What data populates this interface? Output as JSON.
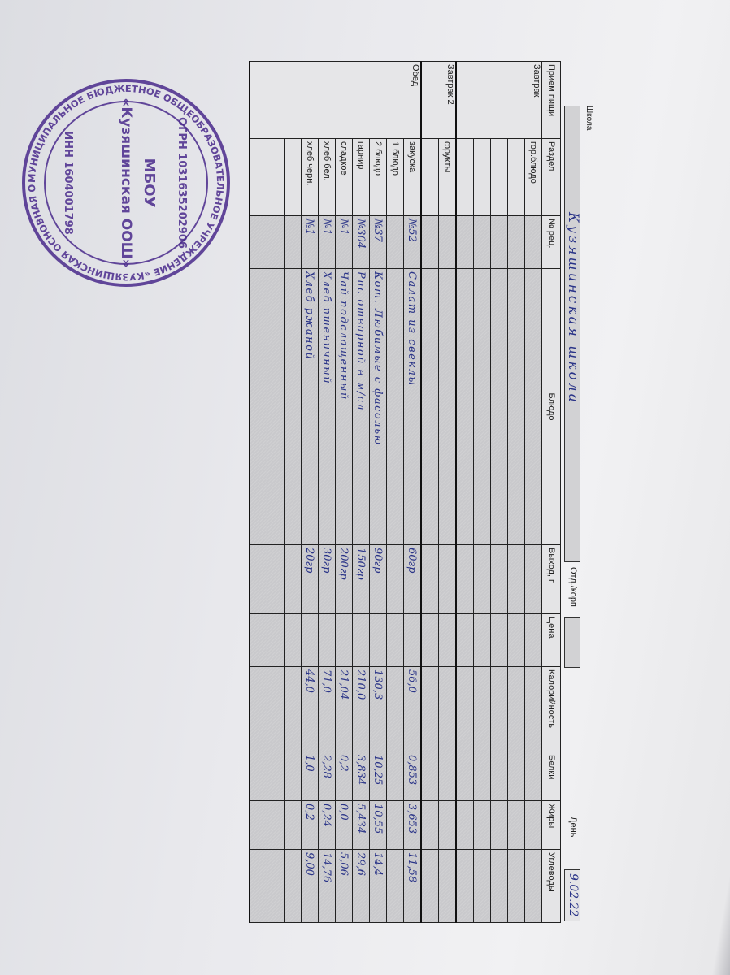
{
  "header": {
    "school_label": "Школа",
    "school_value": "Кузяшинская школа",
    "dept_label": "Отд./корп",
    "dept_value": "",
    "day_label": "День",
    "day_value": "9.02.22"
  },
  "columns": [
    "Прием пищи",
    "Раздел",
    "№ рец.",
    "Блюдо",
    "Выход, г",
    "Цена",
    "Калорийность",
    "Белки",
    "Жиры",
    "Углеводы"
  ],
  "sections": [
    {
      "meal": "Завтрак",
      "rows": [
        {
          "section": "гор.блюдо",
          "recipe": "",
          "dish": "",
          "yield": "",
          "price": "",
          "kcal": "",
          "protein": "",
          "fat": "",
          "carbs": ""
        },
        {
          "section": "",
          "recipe": "",
          "dish": "",
          "yield": "",
          "price": "",
          "kcal": "",
          "protein": "",
          "fat": "",
          "carbs": ""
        },
        {
          "section": "",
          "recipe": "",
          "dish": "",
          "yield": "",
          "price": "",
          "kcal": "",
          "protein": "",
          "fat": "",
          "carbs": ""
        },
        {
          "section": "",
          "recipe": "",
          "dish": "",
          "yield": "",
          "price": "",
          "kcal": "",
          "protein": "",
          "fat": "",
          "carbs": ""
        },
        {
          "section": "",
          "recipe": "",
          "dish": "",
          "yield": "",
          "price": "",
          "kcal": "",
          "protein": "",
          "fat": "",
          "carbs": ""
        }
      ]
    },
    {
      "meal": "Завтрак 2",
      "rows": [
        {
          "section": "фрукты",
          "recipe": "",
          "dish": "",
          "yield": "",
          "price": "",
          "kcal": "",
          "protein": "",
          "fat": "",
          "carbs": ""
        },
        {
          "section": "",
          "recipe": "",
          "dish": "",
          "yield": "",
          "price": "",
          "kcal": "",
          "protein": "",
          "fat": "",
          "carbs": ""
        }
      ]
    },
    {
      "meal": "Обед",
      "rows": [
        {
          "section": "закуска",
          "recipe": "№52",
          "dish": "Салат из свеклы",
          "yield": "60гр",
          "price": "",
          "kcal": "56,0",
          "protein": "0,853",
          "fat": "3,653",
          "carbs": "11,58"
        },
        {
          "section": "1 блюдо",
          "recipe": "",
          "dish": "",
          "yield": "",
          "price": "",
          "kcal": "",
          "protein": "",
          "fat": "",
          "carbs": ""
        },
        {
          "section": "2 блюдо",
          "recipe": "№37",
          "dish": "Кот. Любимые с фасолью",
          "yield": "90гр",
          "price": "",
          "kcal": "130,3",
          "protein": "10,25",
          "fat": "10,55",
          "carbs": "14,4"
        },
        {
          "section": "гарнир",
          "recipe": "№304",
          "dish": "Рис отварной в м/сл",
          "yield": "150гр",
          "price": "",
          "kcal": "210,0",
          "protein": "3,834",
          "fat": "5,434",
          "carbs": "29,6"
        },
        {
          "section": "сладкое",
          "recipe": "№1",
          "dish": "Чай подслащенный",
          "yield": "200гр",
          "price": "",
          "kcal": "21,04",
          "protein": "0,2",
          "fat": "0,0",
          "carbs": "5,06"
        },
        {
          "section": "хлеб бел.",
          "recipe": "№1",
          "dish": "Хлеб пшеничный",
          "yield": "30гр",
          "price": "",
          "kcal": "71,0",
          "protein": "2,28",
          "fat": "0,24",
          "carbs": "14,76"
        },
        {
          "section": "хлеб черн.",
          "recipe": "№1",
          "dish": "Хлеб ржаной",
          "yield": "20гр",
          "price": "",
          "kcal": "44,0",
          "protein": "1,0",
          "fat": "0,2",
          "carbs": "9,00"
        },
        {
          "section": "",
          "recipe": "",
          "dish": "",
          "yield": "",
          "price": "",
          "kcal": "",
          "protein": "",
          "fat": "",
          "carbs": ""
        },
        {
          "section": "",
          "recipe": "",
          "dish": "",
          "yield": "",
          "price": "",
          "kcal": "",
          "protein": "",
          "fat": "",
          "carbs": ""
        },
        {
          "section": "",
          "recipe": "",
          "dish": "",
          "yield": "",
          "price": "",
          "kcal": "",
          "protein": "",
          "fat": "",
          "carbs": ""
        }
      ]
    }
  ],
  "stamp": {
    "outer_text": "МУНИЦИПАЛЬНОЕ БЮДЖЕТНОЕ ОБЩЕОБРАЗОВАТЕЛЬНОЕ УЧРЕЖДЕНИЕ «КУЗЯШИНСКАЯ ОСНОВНАЯ ОБЩЕОБРАЗОВАТЕЛЬНАЯ ШКОЛА» АКТАНЫШСКОГО МУНИЦИПАЛЬНОГО РАЙОНА РЕСПУБЛИКИ ТАТАРСТАН",
    "ogrn": "ОГРН 1031635202906",
    "inn": "ИНН 1604001798",
    "center_top": "МБОУ",
    "center_main": "«Кузяшинская ООШ»",
    "color": "#4a2a8c"
  },
  "colors": {
    "ink": "#2a3488",
    "cell_shade": "#c9c9cc"
  }
}
